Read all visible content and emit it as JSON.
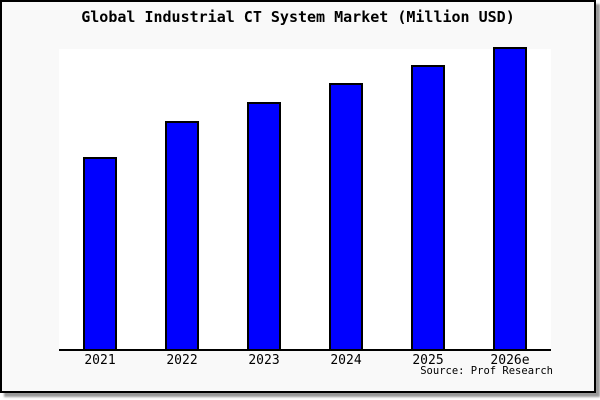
{
  "chart": {
    "title": "Global Industrial CT System Market (Million USD)",
    "source": "Source: Prof Research"
  },
  "chart_data": {
    "type": "bar",
    "title": "Global Industrial CT System Market (Million USD)",
    "categories": [
      "2021",
      "2022",
      "2023",
      "2024",
      "2025",
      "2026e"
    ],
    "values_relative_pct_of_max": [
      63.3,
      75.3,
      81.7,
      88.0,
      94.0,
      100.0
    ],
    "xlabel": "",
    "ylabel": "",
    "y_axis_shown": false,
    "value_labels_shown": false,
    "grid": false,
    "legend": false,
    "source": "Source: Prof Research",
    "bar_color": "#0000ff",
    "bar_border_color": "#000000",
    "plot_background": "#ffffff",
    "figure_background": "#f9f9f9",
    "frame_border_color": "#000000"
  }
}
